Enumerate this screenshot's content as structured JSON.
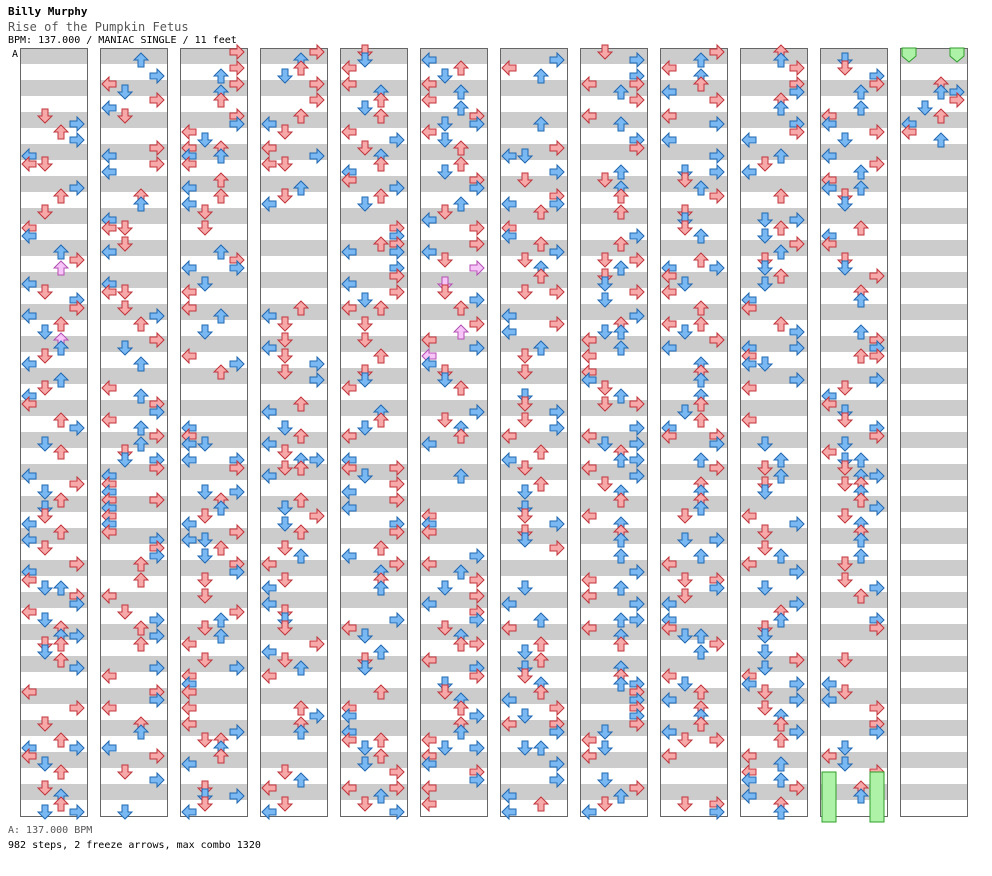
{
  "header": {
    "artist": "Billy Murphy",
    "song_title": "Rise of the Pumpkin Fetus",
    "meta": "BPM: 137.000 / MANIAC SINGLE / 11 feet"
  },
  "chart": {
    "section_marker": "A",
    "columns": 12,
    "measures_per_column": 12,
    "lanes": [
      "left",
      "down",
      "up",
      "right"
    ],
    "colors": {
      "note_red": "#f7a9a9",
      "note_red_stroke": "#c0333a",
      "note_blue": "#79b8f2",
      "note_blue_stroke": "#2167b0",
      "note_pink": "#f7c4f7",
      "note_pink_stroke": "#b24fb2",
      "freeze": "#aef2a8",
      "freeze_stroke": "#2f9e2a",
      "stripe": "#cccccc",
      "border": "#666666"
    }
  },
  "footer": {
    "bpm_line": "A: 137.000 BPM",
    "stats_line": "982 steps, 2 freeze arrows, max combo 1320"
  }
}
